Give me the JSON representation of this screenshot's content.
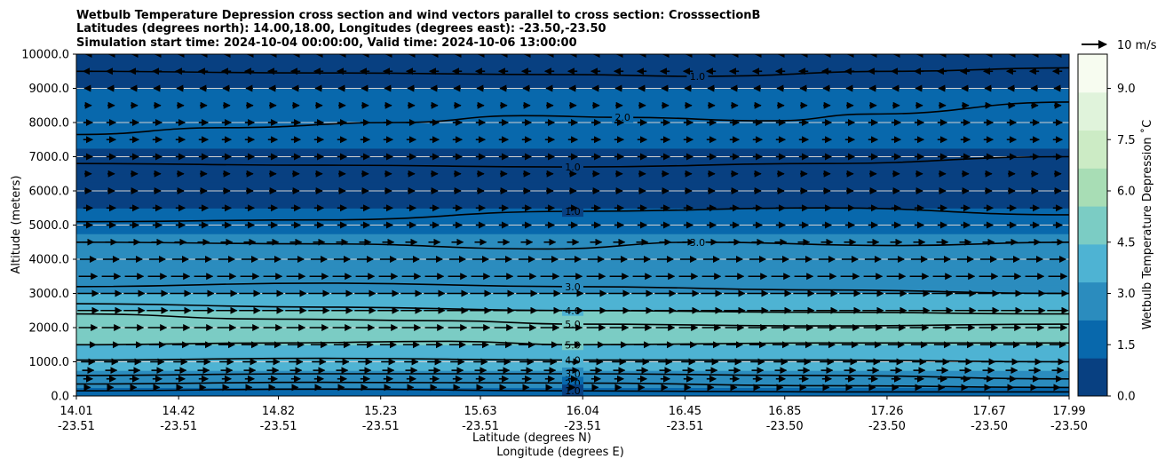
{
  "chart_data": {
    "type": "contour",
    "title_lines": [
      "Wetbulb Temperature Depression cross section and wind vectors parallel to cross section: CrosssectionB",
      "Latitudes (degrees north): 14.00,18.00, Longitudes (degrees east): -23.50,-23.50",
      "Simulation start time: 2024-10-04 00:00:00, Valid time: 2024-10-06 13:00:00"
    ],
    "ylabel": "Altitude (meters)",
    "xlabel_lat": "Latitude (degrees N)",
    "xlabel_lon": "Longitude (degrees E)",
    "ylim": [
      0,
      10000
    ],
    "y_ticks": [
      "0.0",
      "1000.0",
      "2000.0",
      "3000.0",
      "4000.0",
      "5000.0",
      "6000.0",
      "7000.0",
      "8000.0",
      "9000.0",
      "10000.0"
    ],
    "x_ticks": [
      {
        "lat": "14.01",
        "lon": "-23.51"
      },
      {
        "lat": "14.42",
        "lon": "-23.51"
      },
      {
        "lat": "14.82",
        "lon": "-23.51"
      },
      {
        "lat": "15.23",
        "lon": "-23.51"
      },
      {
        "lat": "15.63",
        "lon": "-23.51"
      },
      {
        "lat": "16.04",
        "lon": "-23.51"
      },
      {
        "lat": "16.45",
        "lon": "-23.51"
      },
      {
        "lat": "16.85",
        "lon": "-23.50"
      },
      {
        "lat": "17.26",
        "lon": "-23.50"
      },
      {
        "lat": "17.67",
        "lon": "-23.50"
      },
      {
        "lat": "17.99",
        "lon": "-23.50"
      }
    ],
    "x_range": [
      14.01,
      17.99
    ],
    "grid": "horizontal",
    "colorbar": {
      "label": "Wetbulb Temperature Depression ˚C",
      "range": [
        0,
        10
      ],
      "ticks": [
        "0.0",
        "1.5",
        "3.0",
        "4.5",
        "6.0",
        "7.5",
        "9.0"
      ],
      "colors": [
        "#084081",
        "#0868ac",
        "#2b8cbe",
        "#4eb3d3",
        "#7bccc4",
        "#a8ddb5",
        "#ccebc5",
        "#e0f3db",
        "#f7fcf0"
      ]
    },
    "quiver_key": "10 m/s",
    "depression_profile": [
      {
        "altitude": 0,
        "value": 1.8
      },
      {
        "altitude": 500,
        "value": 3.0
      },
      {
        "altitude": 1000,
        "value": 4.2
      },
      {
        "altitude": 1500,
        "value": 5.2
      },
      {
        "altitude": 2000,
        "value": 5.6
      },
      {
        "altitude": 2500,
        "value": 5.0
      },
      {
        "altitude": 3000,
        "value": 3.8
      },
      {
        "altitude": 3500,
        "value": 3.4
      },
      {
        "altitude": 4000,
        "value": 3.2
      },
      {
        "altitude": 4500,
        "value": 3.0
      },
      {
        "altitude": 5000,
        "value": 2.2
      },
      {
        "altitude": 5500,
        "value": 1.2
      },
      {
        "altitude": 6000,
        "value": 0.5
      },
      {
        "altitude": 6500,
        "value": 0.4
      },
      {
        "altitude": 7000,
        "value": 1.0
      },
      {
        "altitude": 7500,
        "value": 1.6
      },
      {
        "altitude": 8000,
        "value": 2.0
      },
      {
        "altitude": 8500,
        "value": 2.0
      },
      {
        "altitude": 9000,
        "value": 1.3
      },
      {
        "altitude": 9500,
        "value": 1.0
      },
      {
        "altitude": 10000,
        "value": 1.0
      }
    ],
    "wind_profile": [
      {
        "altitude": 250,
        "speed": 2,
        "dir": 1
      },
      {
        "altitude": 500,
        "speed": 4,
        "dir": 1
      },
      {
        "altitude": 750,
        "speed": 5,
        "dir": 1
      },
      {
        "altitude": 1000,
        "speed": 6,
        "dir": 1
      },
      {
        "altitude": 1500,
        "speed": 7,
        "dir": 1
      },
      {
        "altitude": 2000,
        "speed": 8,
        "dir": 1
      },
      {
        "altitude": 2500,
        "speed": 9,
        "dir": 1
      },
      {
        "altitude": 3000,
        "speed": 9,
        "dir": 1
      },
      {
        "altitude": 3500,
        "speed": 8,
        "dir": 1
      },
      {
        "altitude": 4000,
        "speed": 7,
        "dir": 1
      },
      {
        "altitude": 4500,
        "speed": 5,
        "dir": 1
      },
      {
        "altitude": 5000,
        "speed": 4,
        "dir": 1
      },
      {
        "altitude": 5500,
        "speed": 4,
        "dir": 1
      },
      {
        "altitude": 6000,
        "speed": 3,
        "dir": 1
      },
      {
        "altitude": 6500,
        "speed": 3,
        "dir": 1
      },
      {
        "altitude": 7000,
        "speed": 4,
        "dir": 1
      },
      {
        "altitude": 7500,
        "speed": 4,
        "dir": 1
      },
      {
        "altitude": 8000,
        "speed": 4,
        "dir": 1
      },
      {
        "altitude": 8500,
        "speed": 3,
        "dir": 1
      },
      {
        "altitude": 9000,
        "speed": 3,
        "dir": -1
      },
      {
        "altitude": 9500,
        "speed": 4,
        "dir": -1
      },
      {
        "altitude": 10000,
        "speed": 2,
        "dir": -1
      }
    ],
    "contours": [
      {
        "level": "1.0",
        "points": [
          [
            14.01,
            9500
          ],
          [
            15.0,
            9450
          ],
          [
            16.0,
            9400
          ],
          [
            16.5,
            9350
          ],
          [
            17.3,
            9500
          ],
          [
            17.99,
            9600
          ]
        ]
      },
      {
        "level": "2.0",
        "points": [
          [
            14.01,
            7650
          ],
          [
            14.6,
            7850
          ],
          [
            15.3,
            8000
          ],
          [
            15.8,
            8200
          ],
          [
            16.2,
            8150
          ],
          [
            16.8,
            8050
          ],
          [
            17.2,
            8250
          ],
          [
            17.99,
            8600
          ]
        ]
      },
      {
        "level": "1.0",
        "points": [
          [
            14.01,
            6800
          ],
          [
            15.0,
            6750
          ],
          [
            16.0,
            6700
          ],
          [
            17.0,
            6800
          ],
          [
            17.99,
            7000
          ]
        ]
      },
      {
        "level": "1.0",
        "points": [
          [
            14.01,
            5100
          ],
          [
            15.0,
            5150
          ],
          [
            16.0,
            5400
          ],
          [
            17.0,
            5500
          ],
          [
            17.99,
            5300
          ]
        ]
      },
      {
        "level": "3.0",
        "points": [
          [
            14.01,
            4500
          ],
          [
            15.0,
            4450
          ],
          [
            15.9,
            4300
          ],
          [
            16.5,
            4500
          ],
          [
            17.3,
            4400
          ],
          [
            17.99,
            4500
          ]
        ]
      },
      {
        "level": "3.0",
        "points": [
          [
            14.01,
            3200
          ],
          [
            15.0,
            3300
          ],
          [
            16.0,
            3200
          ],
          [
            17.0,
            3100
          ],
          [
            17.99,
            3000
          ]
        ]
      },
      {
        "level": "4.0",
        "points": [
          [
            14.01,
            2700
          ],
          [
            15.0,
            2600
          ],
          [
            16.0,
            2500
          ],
          [
            17.0,
            2450
          ],
          [
            17.99,
            2400
          ]
        ]
      },
      {
        "level": "5.0",
        "points": [
          [
            14.01,
            2400
          ],
          [
            14.8,
            2250
          ],
          [
            15.5,
            2200
          ],
          [
            16.0,
            2100
          ],
          [
            17.0,
            2050
          ],
          [
            17.99,
            2100
          ]
        ]
      },
      {
        "level": "5.0",
        "points": [
          [
            14.01,
            1500
          ],
          [
            14.8,
            1550
          ],
          [
            15.5,
            1600
          ],
          [
            16.0,
            1500
          ],
          [
            17.0,
            1550
          ],
          [
            17.99,
            1550
          ]
        ]
      },
      {
        "level": "4.0",
        "points": [
          [
            14.01,
            1050
          ],
          [
            15.0,
            1100
          ],
          [
            16.0,
            1050
          ],
          [
            17.0,
            1050
          ],
          [
            17.99,
            1000
          ]
        ]
      },
      {
        "level": "3.0",
        "points": [
          [
            14.01,
            600
          ],
          [
            15.0,
            650
          ],
          [
            16.0,
            650
          ],
          [
            17.0,
            600
          ],
          [
            17.99,
            500
          ]
        ]
      },
      {
        "level": "2.0",
        "points": [
          [
            14.01,
            350
          ],
          [
            15.0,
            400
          ],
          [
            16.0,
            380
          ],
          [
            17.0,
            300
          ],
          [
            17.99,
            250
          ]
        ]
      },
      {
        "level": "1.0",
        "points": [
          [
            14.01,
            150
          ],
          [
            15.0,
            200
          ],
          [
            16.0,
            150
          ],
          [
            17.0,
            120
          ],
          [
            17.99,
            120
          ]
        ]
      }
    ]
  }
}
